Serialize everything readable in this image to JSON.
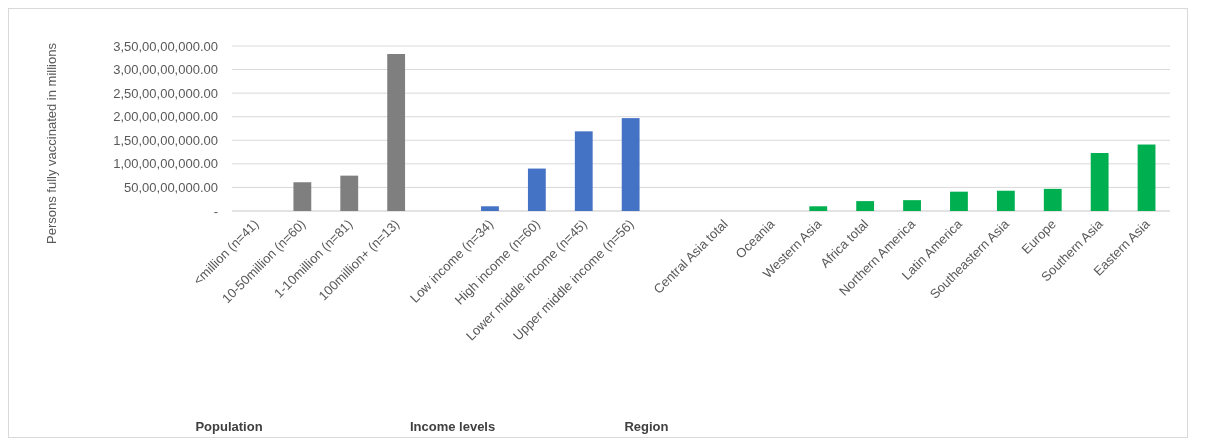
{
  "chart_data": {
    "type": "bar",
    "ylabel": "Persons fully vaccinated in millions",
    "categories": [
      "<million (n=41)",
      "10-50million (n=60)",
      "1-10million (n=81)",
      "100million+ (n=13)",
      null,
      "Low income (n=34)",
      "High income (n=60)",
      "Lower middle income (n=45)",
      "Upper middle income (n=56)",
      null,
      "Central Asia total",
      "Oceania",
      "Western Asia",
      "Africa total",
      "Northern America",
      "Latin America",
      "Southeastern Asia",
      "Europe",
      "Southern Asia",
      "Eastern Asia"
    ],
    "values": [
      0,
      610000000,
      750000000,
      3330000000,
      null,
      100000000,
      900000000,
      1690000000,
      1970000000,
      null,
      0,
      0,
      100000000,
      210000000,
      230000000,
      410000000,
      430000000,
      470000000,
      1230000000,
      1410000000
    ],
    "colors": [
      "#7f7f7f",
      "#7f7f7f",
      "#7f7f7f",
      "#7f7f7f",
      null,
      "#4472c4",
      "#4472c4",
      "#4472c4",
      "#4472c4",
      null,
      "#00b050",
      "#00b050",
      "#00b050",
      "#00b050",
      "#00b050",
      "#00b050",
      "#00b050",
      "#00b050",
      "#00b050",
      "#00b050"
    ],
    "ylim": [
      0,
      3500000000
    ],
    "yticks": [
      {
        "value": 0,
        "label": "-"
      },
      {
        "value": 500000000,
        "label": "50,00,00,000.00"
      },
      {
        "value": 1000000000,
        "label": "1,00,00,00,000.00"
      },
      {
        "value": 1500000000,
        "label": "1,50,00,00,000.00"
      },
      {
        "value": 2000000000,
        "label": "2,00,00,00,000.00"
      },
      {
        "value": 2500000000,
        "label": "2,50,00,00,000.00"
      },
      {
        "value": 3000000000,
        "label": "3,00,00,00,000.00"
      },
      {
        "value": 3500000000,
        "label": "3,50,00,00,000.00"
      }
    ],
    "grid": "y",
    "annotations": [
      "Population",
      "Income levels",
      "Region"
    ]
  }
}
